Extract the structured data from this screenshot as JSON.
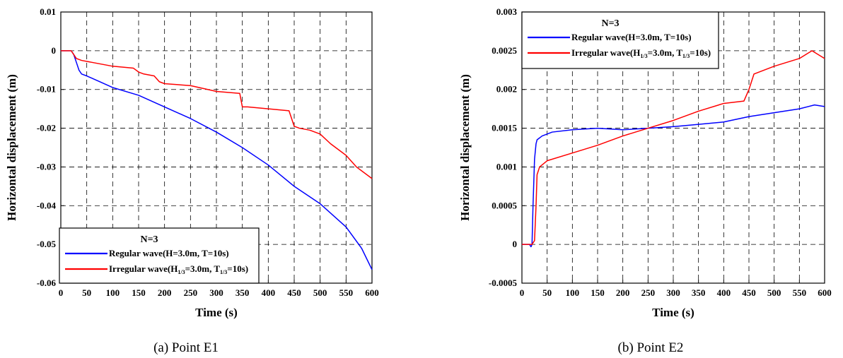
{
  "chart_data": [
    {
      "type": "line",
      "caption": "(a)  Point  E1",
      "xlabel": "Time (s)",
      "ylabel": "Horizontal displacement (m)",
      "xlim": [
        0,
        600
      ],
      "ylim": [
        -0.06,
        0.01
      ],
      "x_ticks": [
        0,
        50,
        100,
        150,
        200,
        250,
        300,
        350,
        400,
        450,
        500,
        550,
        600
      ],
      "y_ticks": [
        0.01,
        0,
        -0.01,
        -0.02,
        -0.03,
        -0.04,
        -0.05,
        -0.06
      ],
      "y_tick_labels": [
        "0.01",
        "0",
        "-0.01",
        "-0.02",
        "-0.03",
        "-0.04",
        "-0.05",
        "-0.06"
      ],
      "grid": true,
      "legend": {
        "placement": "bottom-left",
        "title": "N=3",
        "entries": [
          {
            "text": "Regular wave(H=3.0m, T=10s)"
          },
          {
            "base": "Irregular wave(H",
            "sub1": "1/3",
            "mid": "=3.0m, T",
            "sub2": "1/3",
            "tail": "=10s)"
          }
        ]
      },
      "series": [
        {
          "name": "Regular wave(H=3.0m, T=10s)",
          "color": "#0000ff",
          "x": [
            0,
            20,
            25,
            30,
            35,
            40,
            50,
            75,
            100,
            150,
            200,
            250,
            300,
            350,
            400,
            450,
            500,
            550,
            580,
            600
          ],
          "y": [
            0,
            0,
            -0.001,
            -0.003,
            -0.005,
            -0.006,
            -0.0065,
            -0.008,
            -0.0095,
            -0.0115,
            -0.0145,
            -0.0175,
            -0.021,
            -0.025,
            -0.0295,
            -0.035,
            -0.0395,
            -0.0455,
            -0.051,
            -0.0565
          ]
        },
        {
          "name": "Irregular wave(H1/3=3.0m, T1/3=10s)",
          "color": "#ff0000",
          "x": [
            0,
            20,
            25,
            30,
            40,
            60,
            100,
            140,
            150,
            160,
            180,
            190,
            200,
            250,
            300,
            345,
            350,
            360,
            400,
            440,
            450,
            460,
            480,
            500,
            520,
            550,
            570,
            600
          ],
          "y": [
            0,
            0,
            -0.001,
            -0.002,
            -0.0025,
            -0.003,
            -0.004,
            -0.0045,
            -0.0055,
            -0.006,
            -0.0065,
            -0.008,
            -0.0085,
            -0.009,
            -0.0105,
            -0.011,
            -0.0145,
            -0.0145,
            -0.015,
            -0.0155,
            -0.0195,
            -0.02,
            -0.0205,
            -0.0215,
            -0.024,
            -0.027,
            -0.03,
            -0.033
          ]
        }
      ]
    },
    {
      "type": "line",
      "caption": "(b)  Point  E2",
      "xlabel": "Time (s)",
      "ylabel": "Horizontal displacement (m)",
      "xlim": [
        0,
        600
      ],
      "ylim": [
        -0.0005,
        0.003
      ],
      "x_ticks": [
        0,
        50,
        100,
        150,
        200,
        250,
        300,
        350,
        400,
        450,
        500,
        550,
        600
      ],
      "y_ticks": [
        0.003,
        0.0025,
        0.002,
        0.0015,
        0.001,
        0.0005,
        0,
        -0.0005
      ],
      "y_tick_labels": [
        "0.003",
        "0.0025",
        "0.002",
        "0.0015",
        "0.001",
        "0.0005",
        "0",
        "-0.0005"
      ],
      "grid": true,
      "legend": {
        "placement": "top-left",
        "title": "N=3",
        "entries": [
          {
            "text": "Regular wave(H=3.0m, T=10s)"
          },
          {
            "base": "Irregular wave(H",
            "sub1": "1/3",
            "mid": "=3.0m, T",
            "sub2": "1/3",
            "tail": "=10s)"
          }
        ]
      },
      "series": [
        {
          "name": "Regular wave(H=3.0m, T=10s)",
          "color": "#0000ff",
          "x": [
            0,
            15,
            18,
            20,
            22,
            25,
            28,
            30,
            40,
            60,
            100,
            150,
            200,
            250,
            300,
            350,
            400,
            450,
            500,
            550,
            580,
            600
          ],
          "y": [
            0,
            0,
            -3e-05,
            0,
            0.0005,
            0.0011,
            0.0013,
            0.00135,
            0.0014,
            0.00145,
            0.00148,
            0.0015,
            0.00148,
            0.0015,
            0.00152,
            0.00155,
            0.00158,
            0.00165,
            0.0017,
            0.00175,
            0.0018,
            0.00178
          ]
        },
        {
          "name": "Irregular wave(H1/3=3.0m, T1/3=10s)",
          "color": "#ff0000",
          "x": [
            0,
            20,
            25,
            28,
            30,
            35,
            50,
            100,
            150,
            200,
            250,
            300,
            350,
            400,
            440,
            450,
            460,
            500,
            550,
            575,
            600
          ],
          "y": [
            0,
            0,
            5e-05,
            0.0005,
            0.0009,
            0.001,
            0.00108,
            0.00118,
            0.00128,
            0.0014,
            0.0015,
            0.0016,
            0.00172,
            0.00182,
            0.00185,
            0.002,
            0.0022,
            0.0023,
            0.0024,
            0.0025,
            0.0024
          ]
        }
      ]
    }
  ]
}
